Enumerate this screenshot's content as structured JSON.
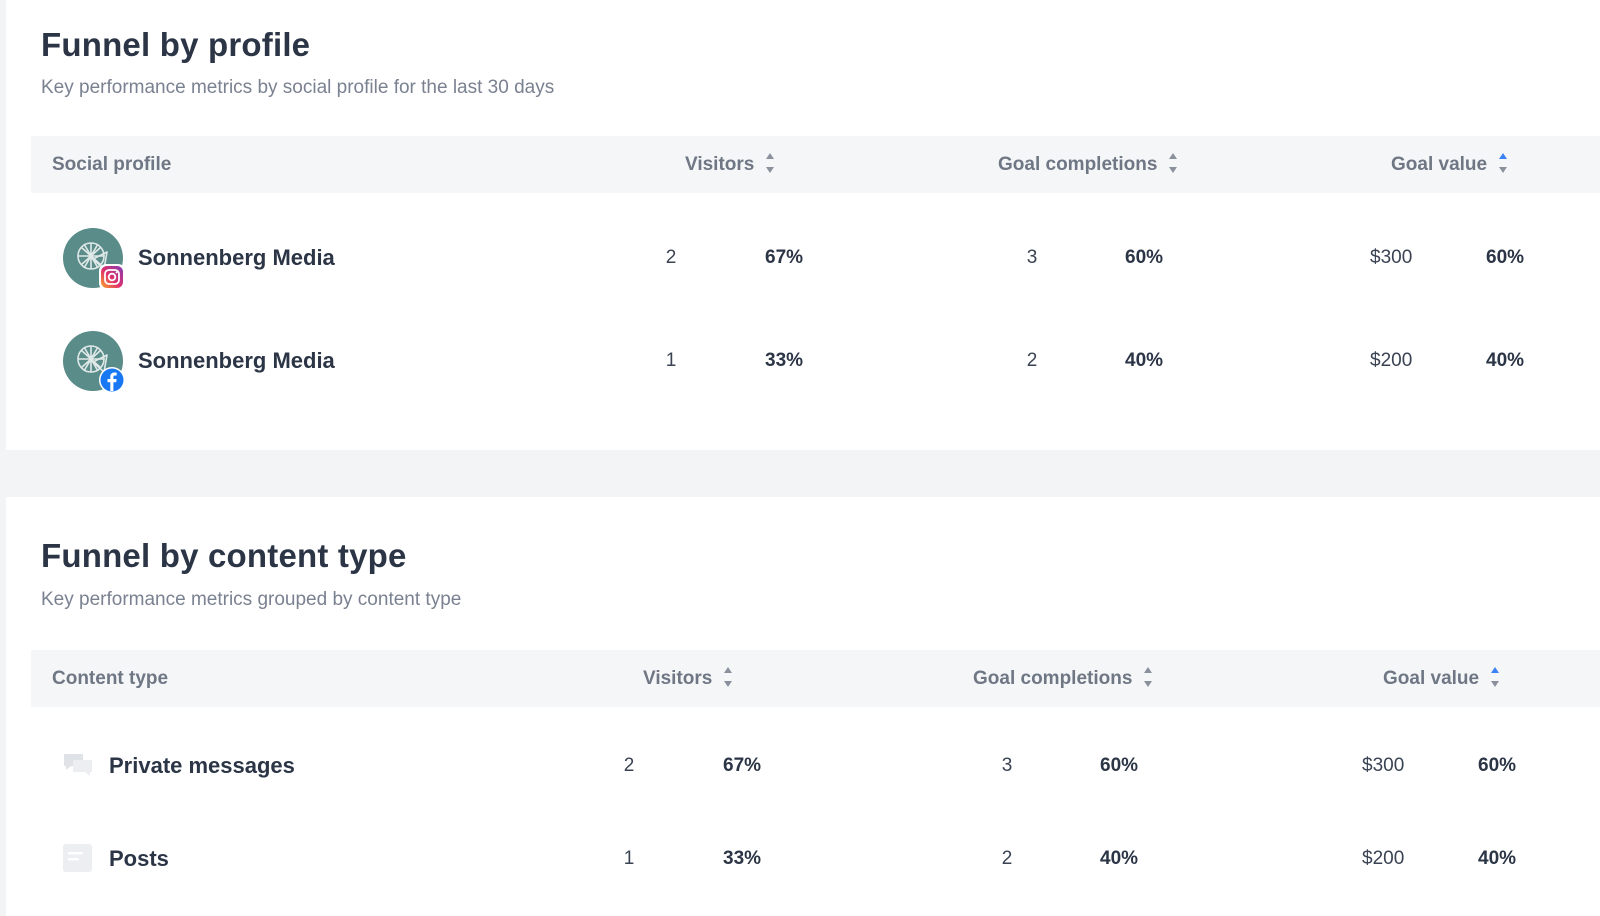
{
  "profile_section": {
    "title": "Funnel by profile",
    "subtitle": "Key performance metrics by social profile for the last 30 days",
    "columns": {
      "profile": "Social profile",
      "visitors": "Visitors",
      "goal_completions": "Goal completions",
      "goal_value": "Goal value"
    },
    "rows": [
      {
        "name": "Sonnenberg Media",
        "network": "instagram",
        "icon": "instagram-icon",
        "visitors": "2",
        "visitors_pct": "67%",
        "goal_completions": "3",
        "goal_completions_pct": "60%",
        "goal_value": "$300",
        "goal_value_pct": "60%"
      },
      {
        "name": "Sonnenberg Media",
        "network": "facebook",
        "icon": "facebook-icon",
        "visitors": "1",
        "visitors_pct": "33%",
        "goal_completions": "2",
        "goal_completions_pct": "40%",
        "goal_value": "$200",
        "goal_value_pct": "40%"
      }
    ]
  },
  "content_section": {
    "title": "Funnel by content type",
    "subtitle": "Key performance metrics grouped by content type",
    "columns": {
      "content_type": "Content type",
      "visitors": "Visitors",
      "goal_completions": "Goal completions",
      "goal_value": "Goal value"
    },
    "rows": [
      {
        "name": "Private messages",
        "icon": "chat-bubbles-icon",
        "visitors": "2",
        "visitors_pct": "67%",
        "goal_completions": "3",
        "goal_completions_pct": "60%",
        "goal_value": "$300",
        "goal_value_pct": "60%"
      },
      {
        "name": "Posts",
        "icon": "post-icon",
        "visitors": "1",
        "visitors_pct": "33%",
        "goal_completions": "2",
        "goal_completions_pct": "40%",
        "goal_value": "$200",
        "goal_value_pct": "40%"
      }
    ]
  },
  "colors": {
    "title": "#2b3546",
    "muted": "#7a8190",
    "header_bg": "#f5f6f8",
    "sort_active": "#3b82f6",
    "sort_inactive": "#8a919d",
    "avatar_bg": "#5a8c8a",
    "facebook": "#1877f2",
    "instagram": "#e1306c"
  }
}
